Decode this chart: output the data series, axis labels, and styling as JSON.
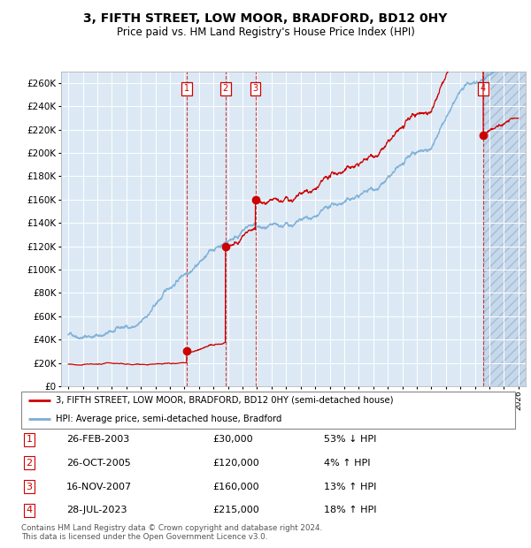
{
  "title": "3, FIFTH STREET, LOW MOOR, BRADFORD, BD12 0HY",
  "subtitle": "Price paid vs. HM Land Registry's House Price Index (HPI)",
  "title_fontsize": 10,
  "subtitle_fontsize": 8.5,
  "plot_bg_color": "#dce9f5",
  "ylim": [
    0,
    270000
  ],
  "yticks": [
    0,
    20000,
    40000,
    60000,
    80000,
    100000,
    120000,
    140000,
    160000,
    180000,
    200000,
    220000,
    240000,
    260000
  ],
  "legend_line1": "3, FIFTH STREET, LOW MOOR, BRADFORD, BD12 0HY (semi-detached house)",
  "legend_line2": "HPI: Average price, semi-detached house, Bradford",
  "sale_labels": [
    "1",
    "2",
    "3",
    "4"
  ],
  "sale_dates_display": [
    "26-FEB-2003",
    "26-OCT-2005",
    "16-NOV-2007",
    "28-JUL-2023"
  ],
  "sale_prices_display": [
    "£30,000",
    "£120,000",
    "£160,000",
    "£215,000"
  ],
  "sale_hpi_display": [
    "53% ↓ HPI",
    "4% ↑ HPI",
    "13% ↑ HPI",
    "18% ↑ HPI"
  ],
  "sale_years_decimal": [
    2003.15,
    2005.82,
    2007.88,
    2023.57
  ],
  "sale_prices": [
    30000,
    120000,
    160000,
    215000
  ],
  "footnote": "Contains HM Land Registry data © Crown copyright and database right 2024.\nThis data is licensed under the Open Government Licence v3.0.",
  "red_line_color": "#cc0000",
  "blue_line_color": "#7aaed6",
  "marker_color": "#cc0000",
  "hatch_start_year": 2023.57,
  "xmin": 1994.5,
  "xmax": 2026.5
}
